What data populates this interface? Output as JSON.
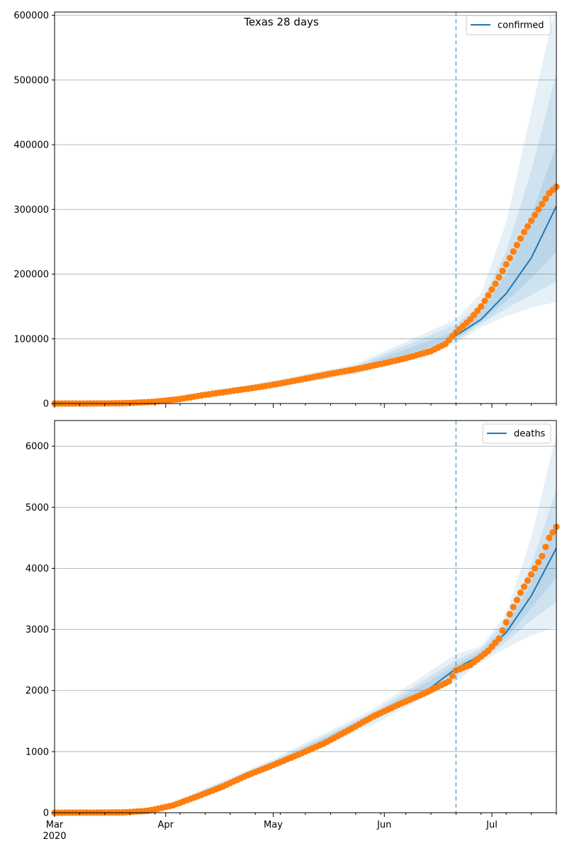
{
  "colors": {
    "model_line": "#1f77b4",
    "observed_points": "#ff7f0e",
    "band": "#1f77b4",
    "cutoff_line": "#1f77b4",
    "grid": "#b0b0b0",
    "axis": "#000000"
  },
  "figure": {
    "title": "Texas 28 days"
  },
  "x_axis": {
    "ticks": [
      {
        "date": "2020-03-01",
        "label": "Mar",
        "sublabel": "2020"
      },
      {
        "date": "2020-04-01",
        "label": "Apr",
        "sublabel": ""
      },
      {
        "date": "2020-05-01",
        "label": "May",
        "sublabel": ""
      },
      {
        "date": "2020-06-01",
        "label": "Jun",
        "sublabel": ""
      },
      {
        "date": "2020-07-01",
        "label": "Jul",
        "sublabel": ""
      }
    ],
    "range": [
      "2020-03-01",
      "2020-07-19"
    ],
    "cutoff_date": "2020-06-21"
  },
  "chart_data": [
    {
      "type": "line",
      "title": "Texas 28 days",
      "legend": {
        "label": "confirmed",
        "position": "top-right"
      },
      "ylim": [
        0,
        605000
      ],
      "y_ticks": [
        0,
        100000,
        200000,
        300000,
        400000,
        500000,
        600000
      ],
      "grid": "y",
      "observed": [
        [
          "2020-03-01",
          0
        ],
        [
          "2020-03-15",
          80
        ],
        [
          "2020-03-22",
          800
        ],
        [
          "2020-03-29",
          2800
        ],
        [
          "2020-04-05",
          7000
        ],
        [
          "2020-04-12",
          13500
        ],
        [
          "2020-04-19",
          19000
        ],
        [
          "2020-04-26",
          24500
        ],
        [
          "2020-05-03",
          31000
        ],
        [
          "2020-05-10",
          38500
        ],
        [
          "2020-05-17",
          46000
        ],
        [
          "2020-05-24",
          53000
        ],
        [
          "2020-05-31",
          61000
        ],
        [
          "2020-06-07",
          70000
        ],
        [
          "2020-06-14",
          81000
        ],
        [
          "2020-06-18",
          92000
        ],
        [
          "2020-06-21",
          110000
        ],
        [
          "2020-06-25",
          130000
        ],
        [
          "2020-06-28",
          150000
        ],
        [
          "2020-07-02",
          185000
        ],
        [
          "2020-07-06",
          225000
        ],
        [
          "2020-07-10",
          265000
        ],
        [
          "2020-07-14",
          300000
        ],
        [
          "2020-07-17",
          325000
        ],
        [
          "2020-07-19",
          335000
        ]
      ],
      "model": [
        [
          "2020-03-01",
          0
        ],
        [
          "2020-03-15",
          100
        ],
        [
          "2020-03-29",
          3000
        ],
        [
          "2020-04-12",
          13000
        ],
        [
          "2020-04-26",
          24000
        ],
        [
          "2020-05-10",
          37000
        ],
        [
          "2020-05-24",
          52000
        ],
        [
          "2020-06-07",
          69000
        ],
        [
          "2020-06-14",
          80000
        ],
        [
          "2020-06-21",
          105000
        ],
        [
          "2020-06-28",
          130000
        ],
        [
          "2020-07-05",
          170000
        ],
        [
          "2020-07-12",
          225000
        ],
        [
          "2020-07-19",
          305000
        ]
      ],
      "bands": [
        {
          "x": [
            "2020-03-29",
            "2020-04-26",
            "2020-05-24",
            "2020-06-21",
            "2020-06-28",
            "2020-07-05",
            "2020-07-12",
            "2020-07-19"
          ],
          "lower": [
            1800,
            20000,
            45000,
            93000,
            118000,
            135000,
            148000,
            157000
          ],
          "upper": [
            4500,
            30000,
            61000,
            130000,
            170000,
            280000,
            450000,
            620000
          ]
        },
        {
          "x": [
            "2020-03-29",
            "2020-04-26",
            "2020-05-24",
            "2020-06-21",
            "2020-06-28",
            "2020-07-05",
            "2020-07-12",
            "2020-07-19"
          ],
          "lower": [
            2200,
            21500,
            47500,
            97000,
            123000,
            147000,
            168000,
            188000
          ],
          "upper": [
            3900,
            28000,
            58000,
            122000,
            155000,
            235000,
            360000,
            510000
          ]
        },
        {
          "x": [
            "2020-03-29",
            "2020-04-26",
            "2020-05-24",
            "2020-06-21",
            "2020-06-28",
            "2020-07-05",
            "2020-07-12",
            "2020-07-19"
          ],
          "lower": [
            2500,
            22500,
            49500,
            100000,
            127000,
            158000,
            193000,
            235000
          ],
          "upper": [
            3500,
            26500,
            55500,
            112000,
            142000,
            200000,
            290000,
            400000
          ]
        }
      ]
    },
    {
      "type": "line",
      "title": "",
      "legend": {
        "label": "deaths",
        "position": "top-right"
      },
      "ylim": [
        0,
        6420
      ],
      "y_ticks": [
        0,
        1000,
        2000,
        3000,
        4000,
        5000,
        6000
      ],
      "grid": "y",
      "observed": [
        [
          "2020-03-01",
          0
        ],
        [
          "2020-03-20",
          5
        ],
        [
          "2020-03-27",
          30
        ],
        [
          "2020-04-03",
          120
        ],
        [
          "2020-04-10",
          270
        ],
        [
          "2020-04-17",
          430
        ],
        [
          "2020-04-24",
          620
        ],
        [
          "2020-05-01",
          780
        ],
        [
          "2020-05-08",
          950
        ],
        [
          "2020-05-15",
          1130
        ],
        [
          "2020-05-22",
          1350
        ],
        [
          "2020-05-29",
          1580
        ],
        [
          "2020-06-05",
          1770
        ],
        [
          "2020-06-12",
          1950
        ],
        [
          "2020-06-19",
          2150
        ],
        [
          "2020-06-21",
          2330
        ],
        [
          "2020-06-25",
          2420
        ],
        [
          "2020-06-30",
          2650
        ],
        [
          "2020-07-03",
          2850
        ],
        [
          "2020-07-06",
          3250
        ],
        [
          "2020-07-09",
          3600
        ],
        [
          "2020-07-12",
          3900
        ],
        [
          "2020-07-15",
          4200
        ],
        [
          "2020-07-17",
          4500
        ],
        [
          "2020-07-19",
          4680
        ]
      ],
      "model": [
        [
          "2020-03-01",
          0
        ],
        [
          "2020-03-20",
          10
        ],
        [
          "2020-04-03",
          130
        ],
        [
          "2020-04-17",
          420
        ],
        [
          "2020-05-01",
          800
        ],
        [
          "2020-05-15",
          1150
        ],
        [
          "2020-05-29",
          1570
        ],
        [
          "2020-06-12",
          1960
        ],
        [
          "2020-06-21",
          2360
        ],
        [
          "2020-06-28",
          2580
        ],
        [
          "2020-07-05",
          2950
        ],
        [
          "2020-07-12",
          3550
        ],
        [
          "2020-07-19",
          4330
        ]
      ],
      "bands": [
        {
          "x": [
            "2020-04-03",
            "2020-05-01",
            "2020-05-29",
            "2020-06-21",
            "2020-06-28",
            "2020-07-05",
            "2020-07-12",
            "2020-07-19"
          ],
          "lower": [
            100,
            720,
            1450,
            2150,
            2460,
            2700,
            2900,
            3050
          ],
          "upper": [
            170,
            880,
            1700,
            2600,
            2720,
            3250,
            4500,
            6200
          ]
        },
        {
          "x": [
            "2020-04-03",
            "2020-05-01",
            "2020-05-29",
            "2020-06-21",
            "2020-06-28",
            "2020-07-05",
            "2020-07-12",
            "2020-07-19"
          ],
          "lower": [
            110,
            750,
            1500,
            2230,
            2490,
            2800,
            3150,
            3450
          ],
          "upper": [
            155,
            850,
            1650,
            2500,
            2680,
            3150,
            4050,
            5300
          ]
        },
        {
          "x": [
            "2020-04-03",
            "2020-05-01",
            "2020-05-29",
            "2020-06-21",
            "2020-06-28",
            "2020-07-05",
            "2020-07-12",
            "2020-07-19"
          ],
          "lower": [
            120,
            775,
            1540,
            2290,
            2530,
            2860,
            3350,
            3850
          ],
          "upper": [
            145,
            825,
            1610,
            2420,
            2640,
            3050,
            3750,
            4750
          ]
        }
      ]
    }
  ]
}
